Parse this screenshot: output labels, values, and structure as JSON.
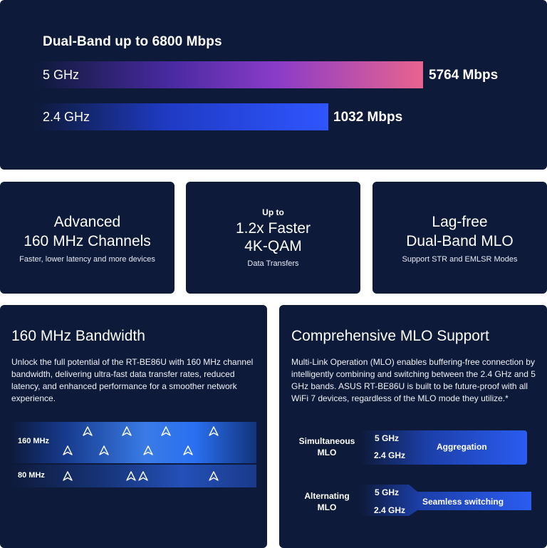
{
  "bands": {
    "title": "Dual-Band up to 6800 Mbps",
    "band5": {
      "label": "5 GHz",
      "value": "5764 Mbps",
      "fraction": 0.85
    },
    "band24": {
      "label": "2.4 GHz",
      "value": "1032 Mbps",
      "fraction": 0.64
    }
  },
  "features": [
    {
      "line1": "Advanced",
      "line2": "160 MHz Channels",
      "sub": "Faster, lower latency and more devices"
    },
    {
      "pre": "Up to",
      "line1": "1.2x Faster",
      "line2": "4K-QAM",
      "sub": "Data Transfers"
    },
    {
      "line1": "Lag-free",
      "line2": "Dual-Band MLO",
      "sub": "Support STR and EMLSR Modes"
    }
  ],
  "bandwidth": {
    "title": "160 MHz Bandwidth",
    "desc": "Unlock the full potential of the RT-BE86U with 160 MHz channel bandwidth, delivering ultra-fast data transfer rates, reduced latency, and enhanced performance for a smoother network experience.",
    "row160": "160 MHz",
    "row80": "80 MHz"
  },
  "mlo": {
    "title": "Comprehensive MLO Support",
    "desc": "Multi-Link Operation (MLO) enables buffering-free connection by intelligently combining and switching between the 2.4 GHz and 5 GHz bands. ASUS RT-BE86U is built to be future-proof with all WiFi 7 devices, regardless of the MLO mode they utilize.*",
    "simultaneous": {
      "line1": "Simultaneous",
      "line2": "MLO",
      "band5": "5 GHz",
      "band24": "2.4 GHz",
      "mode": "Aggregation"
    },
    "alternating": {
      "line1": "Alternating",
      "line2": "MLO",
      "band5": "5 GHz",
      "band24": "2.4 GHz",
      "mode": "Seamless switching"
    }
  }
}
